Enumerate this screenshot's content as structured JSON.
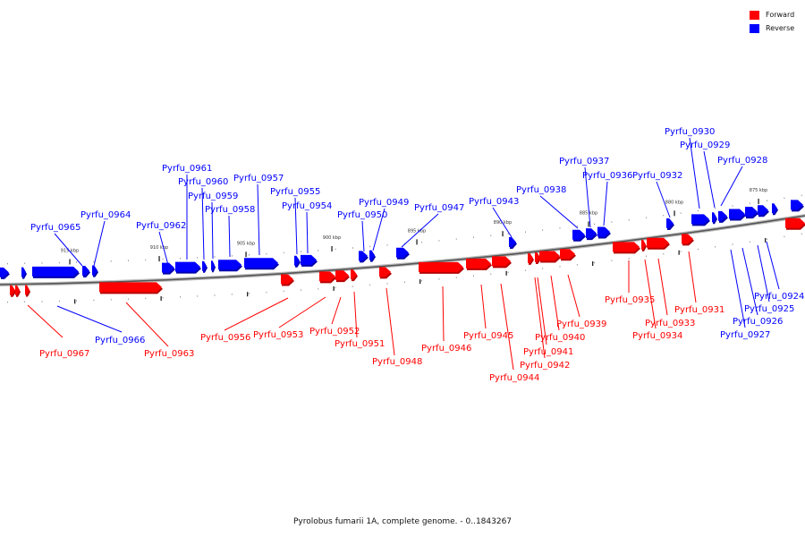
{
  "legend": {
    "forward_label": "Forward",
    "reverse_label": "Reverse",
    "forward_color": "#ff0000",
    "reverse_color": "#0000ff"
  },
  "caption": "Pyrolobus fumarii 1A, complete genome. - 0..1843267",
  "tick_labels": [
    "915 kbp",
    "910 kbp",
    "905 kbp",
    "900 kbp",
    "895 kbp",
    "890 kbp",
    "885 kbp",
    "880 kbp",
    "875 kbp"
  ],
  "reverse_genes": [
    "Pyrfu_0965",
    "Pyrfu_0964",
    "Pyrfu_0962",
    "Pyrfu_0961",
    "Pyrfu_0960",
    "Pyrfu_0959",
    "Pyrfu_0958",
    "Pyrfu_0957",
    "Pyrfu_0955",
    "Pyrfu_0954",
    "Pyrfu_0950",
    "Pyrfu_0949",
    "Pyrfu_0947",
    "Pyrfu_0943",
    "Pyrfu_0938",
    "Pyrfu_0937",
    "Pyrfu_0936",
    "Pyrfu_0932",
    "Pyrfu_0930",
    "Pyrfu_0929",
    "Pyrfu_0928",
    "Pyrfu_0966",
    "Pyrfu_0927",
    "Pyrfu_0926",
    "Pyrfu_0925",
    "Pyrfu_0924"
  ],
  "forward_genes": [
    "Pyrfu_0967",
    "Pyrfu_0963",
    "Pyrfu_0956",
    "Pyrfu_0953",
    "Pyrfu_0952",
    "Pyrfu_0951",
    "Pyrfu_0948",
    "Pyrfu_0946",
    "Pyrfu_0945",
    "Pyrfu_0944",
    "Pyrfu_0942",
    "Pyrfu_0941",
    "Pyrfu_0940",
    "Pyrfu_0939",
    "Pyrfu_0935",
    "Pyrfu_0934",
    "Pyrfu_0933",
    "Pyrfu_0931"
  ]
}
